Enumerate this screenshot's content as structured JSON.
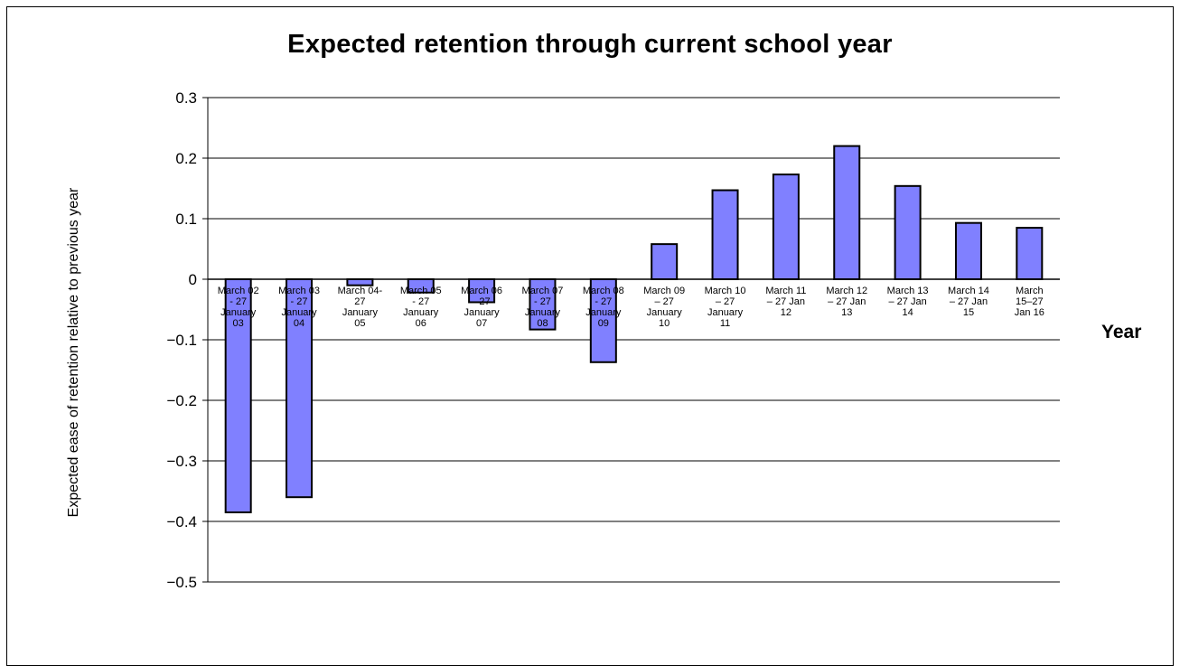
{
  "chart_data": {
    "type": "bar",
    "title": "Expected retention through current school year",
    "xlabel": "Year",
    "ylabel": "Expected ease of retention relative to previous year",
    "ylim": [
      -0.5,
      0.3
    ],
    "yticks": [
      "0.3",
      "0.2",
      "0.1",
      "0",
      "-0.1",
      "-0.2",
      "-0.3",
      "-0.4",
      "-0.5"
    ],
    "grid": true,
    "bar_color": "#8080ff",
    "categories": [
      [
        "March 02",
        "- 27",
        "January",
        "03"
      ],
      [
        "March 03",
        "- 27",
        "January",
        "04"
      ],
      [
        "March 04-",
        "27",
        "January",
        "05"
      ],
      [
        "March 05",
        "- 27",
        "January",
        "06"
      ],
      [
        "March 06",
        "- 27",
        "January",
        "07"
      ],
      [
        "March 07",
        "- 27",
        "January",
        "08"
      ],
      [
        "March 08",
        "- 27",
        "January",
        "09"
      ],
      [
        "March  09",
        "– 27",
        "January",
        "10"
      ],
      [
        "March  10",
        "– 27",
        "January",
        "11"
      ],
      [
        "March  11",
        "– 27 Jan",
        "12"
      ],
      [
        "March  12",
        "– 27 Jan",
        "13"
      ],
      [
        "March  13",
        "– 27 Jan",
        "14"
      ],
      [
        "March  14",
        "– 27 Jan",
        "15"
      ],
      [
        "March",
        "15–27",
        "Jan 16"
      ]
    ],
    "values": [
      -0.385,
      -0.36,
      -0.01,
      -0.022,
      -0.038,
      -0.083,
      -0.137,
      0.058,
      0.147,
      0.173,
      0.22,
      0.154,
      0.093,
      0.085
    ]
  }
}
